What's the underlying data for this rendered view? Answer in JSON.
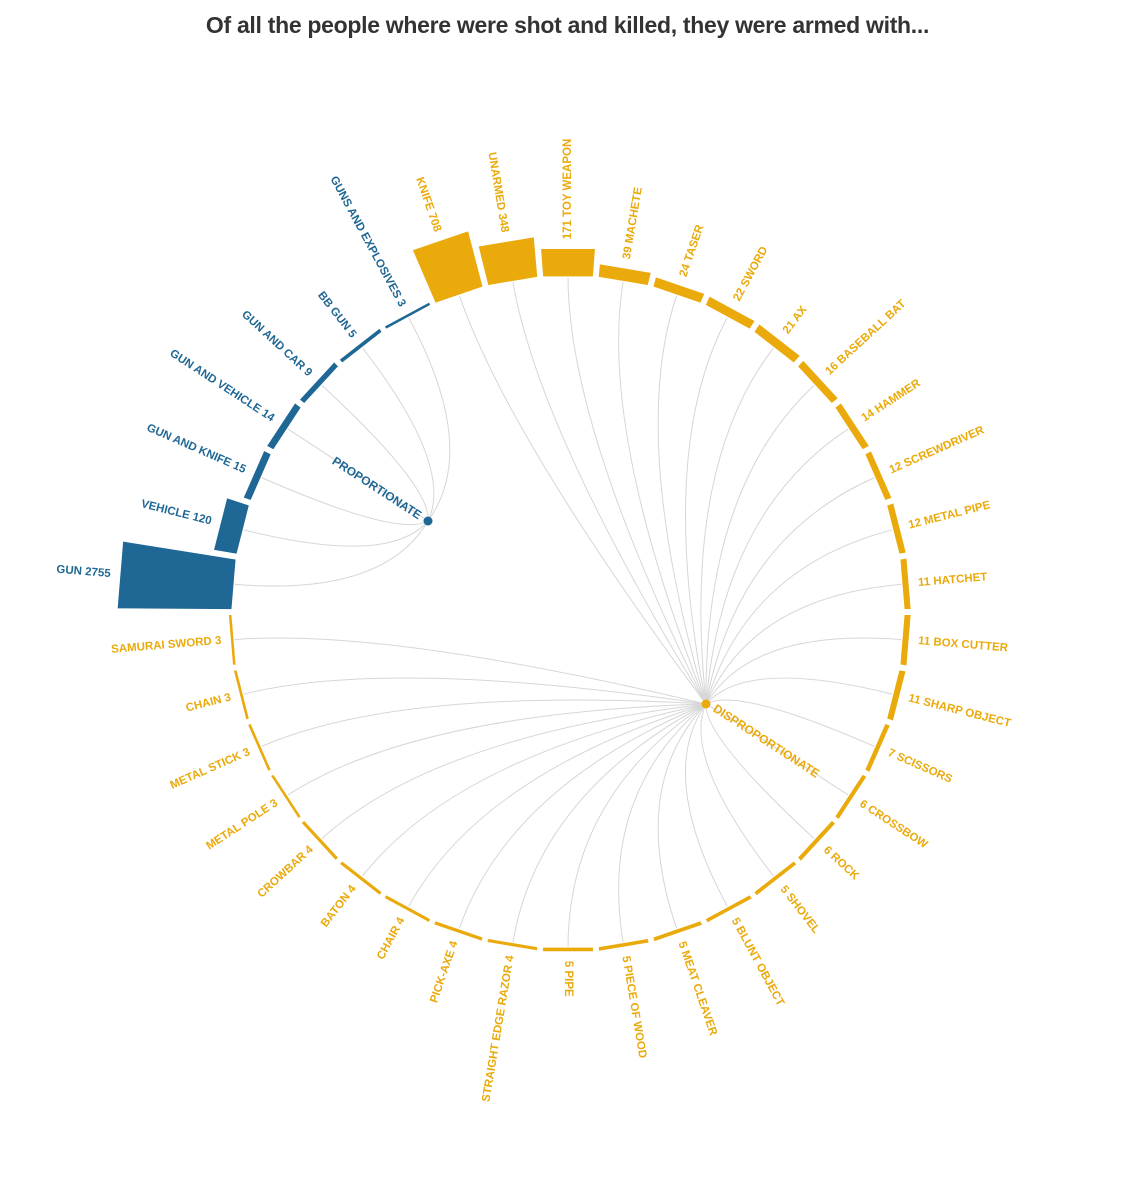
{
  "title": "Of all the people where were shot and killed, they were armed with...",
  "colors": {
    "proportionate": "#1f6794",
    "disproportionate": "#eaaa0c",
    "link": "#d6d6d6"
  },
  "chart_data": {
    "type": "radial-bar-network",
    "title": "Of all the people where were shot and killed, they were armed with...",
    "groups": [
      {
        "name": "PROPORTIONATE",
        "color": "#1f6794"
      },
      {
        "name": "DISPROPORTIONATE",
        "color": "#eaaa0c"
      }
    ],
    "items": [
      {
        "label": "TOY WEAPON",
        "value": 171,
        "group": "DISPROPORTIONATE",
        "value_first": true
      },
      {
        "label": "MACHETE",
        "value": 39,
        "group": "DISPROPORTIONATE",
        "value_first": true
      },
      {
        "label": "TASER",
        "value": 24,
        "group": "DISPROPORTIONATE",
        "value_first": true
      },
      {
        "label": "SWORD",
        "value": 22,
        "group": "DISPROPORTIONATE",
        "value_first": true
      },
      {
        "label": "AX",
        "value": 21,
        "group": "DISPROPORTIONATE",
        "value_first": true
      },
      {
        "label": "BASEBALL BAT",
        "value": 16,
        "group": "DISPROPORTIONATE",
        "value_first": true
      },
      {
        "label": "HAMMER",
        "value": 14,
        "group": "DISPROPORTIONATE",
        "value_first": true
      },
      {
        "label": "SCREWDRIVER",
        "value": 12,
        "group": "DISPROPORTIONATE",
        "value_first": true
      },
      {
        "label": "METAL PIPE",
        "value": 12,
        "group": "DISPROPORTIONATE",
        "value_first": true
      },
      {
        "label": "HATCHET",
        "value": 11,
        "group": "DISPROPORTIONATE",
        "value_first": true
      },
      {
        "label": "BOX CUTTER",
        "value": 11,
        "group": "DISPROPORTIONATE",
        "value_first": true
      },
      {
        "label": "SHARP OBJECT",
        "value": 11,
        "group": "DISPROPORTIONATE",
        "value_first": true
      },
      {
        "label": "SCISSORS",
        "value": 7,
        "group": "DISPROPORTIONATE",
        "value_first": true
      },
      {
        "label": "CROSSBOW",
        "value": 6,
        "group": "DISPROPORTIONATE",
        "value_first": true
      },
      {
        "label": "ROCK",
        "value": 6,
        "group": "DISPROPORTIONATE",
        "value_first": true
      },
      {
        "label": "SHOVEL",
        "value": 5,
        "group": "DISPROPORTIONATE",
        "value_first": true
      },
      {
        "label": "BLUNT OBJECT",
        "value": 5,
        "group": "DISPROPORTIONATE",
        "value_first": true
      },
      {
        "label": "MEAT CLEAVER",
        "value": 5,
        "group": "DISPROPORTIONATE",
        "value_first": true
      },
      {
        "label": "PIECE OF WOOD",
        "value": 5,
        "group": "DISPROPORTIONATE",
        "value_first": true
      },
      {
        "label": "PIPE",
        "value": 5,
        "group": "DISPROPORTIONATE",
        "value_first": true
      },
      {
        "label": "STRAIGHT EDGE RAZOR",
        "value": 4,
        "group": "DISPROPORTIONATE",
        "value_first": false
      },
      {
        "label": "PICK-AXE",
        "value": 4,
        "group": "DISPROPORTIONATE",
        "value_first": false
      },
      {
        "label": "CHAIR",
        "value": 4,
        "group": "DISPROPORTIONATE",
        "value_first": false
      },
      {
        "label": "BATON",
        "value": 4,
        "group": "DISPROPORTIONATE",
        "value_first": false
      },
      {
        "label": "CROWBAR",
        "value": 4,
        "group": "DISPROPORTIONATE",
        "value_first": false
      },
      {
        "label": "METAL POLE",
        "value": 3,
        "group": "DISPROPORTIONATE",
        "value_first": false
      },
      {
        "label": "METAL STICK",
        "value": 3,
        "group": "DISPROPORTIONATE",
        "value_first": false
      },
      {
        "label": "CHAIN",
        "value": 3,
        "group": "DISPROPORTIONATE",
        "value_first": false
      },
      {
        "label": "SAMURAI SWORD",
        "value": 3,
        "group": "DISPROPORTIONATE",
        "value_first": false
      },
      {
        "label": "GUN",
        "value": 2755,
        "group": "PROPORTIONATE",
        "value_first": false
      },
      {
        "label": "VEHICLE",
        "value": 120,
        "group": "PROPORTIONATE",
        "value_first": false
      },
      {
        "label": "GUN AND KNIFE",
        "value": 15,
        "group": "PROPORTIONATE",
        "value_first": false
      },
      {
        "label": "GUN AND VEHICLE",
        "value": 14,
        "group": "PROPORTIONATE",
        "value_first": false
      },
      {
        "label": "GUN AND CAR",
        "value": 9,
        "group": "PROPORTIONATE",
        "value_first": false
      },
      {
        "label": "BB GUN",
        "value": 5,
        "group": "PROPORTIONATE",
        "value_first": false
      },
      {
        "label": "GUNS AND EXPLOSIVES",
        "value": 3,
        "group": "PROPORTIONATE",
        "value_first": false
      },
      {
        "label": "KNIFE",
        "value": 708,
        "group": "DISPROPORTIONATE",
        "value_first": false
      },
      {
        "label": "UNARMED",
        "value": 348,
        "group": "DISPROPORTIONATE",
        "value_first": false
      }
    ]
  }
}
